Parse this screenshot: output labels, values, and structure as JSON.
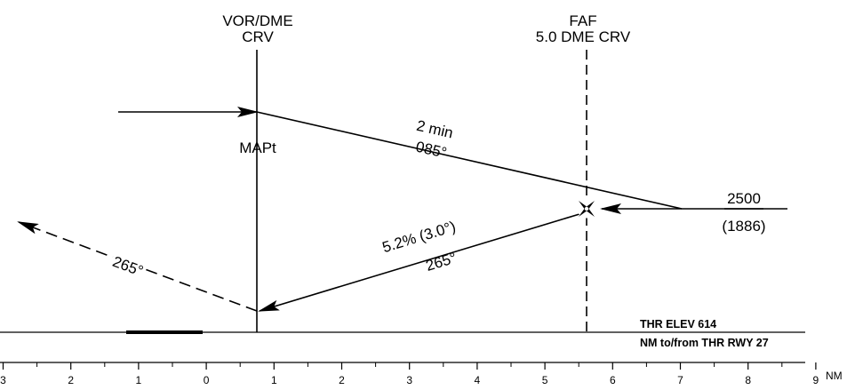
{
  "fixes": {
    "vor_dme": {
      "line1": "VOR/DME",
      "line2": "CRV"
    },
    "faf": {
      "line1": "FAF",
      "line2": "5.0 DME CRV"
    },
    "mapt": "MAPt"
  },
  "tracks": {
    "outbound_time": "2 min",
    "outbound_course": "085°",
    "descent_gradient": "5.2% (3.0°)",
    "inbound_course": "265°",
    "missed_course": "265°"
  },
  "altitude": {
    "value": "2500",
    "height": "(1886)"
  },
  "threshold": {
    "elevation": "THR ELEV 614",
    "distance_ref": "NM to/from THR RWY 27"
  },
  "scale": {
    "unit": "NM",
    "labels": [
      "3",
      "2",
      "1",
      "0",
      "1",
      "2",
      "3",
      "4",
      "5",
      "6",
      "7",
      "8",
      "9"
    ]
  },
  "colors": {
    "ink": "#000000",
    "background": "#ffffff"
  }
}
